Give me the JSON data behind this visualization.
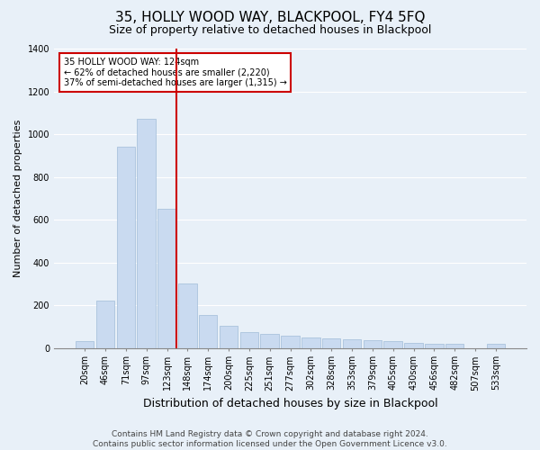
{
  "title": "35, HOLLY WOOD WAY, BLACKPOOL, FY4 5FQ",
  "subtitle": "Size of property relative to detached houses in Blackpool",
  "xlabel": "Distribution of detached houses by size in Blackpool",
  "ylabel": "Number of detached properties",
  "categories": [
    "20sqm",
    "46sqm",
    "71sqm",
    "97sqm",
    "123sqm",
    "148sqm",
    "174sqm",
    "200sqm",
    "225sqm",
    "251sqm",
    "277sqm",
    "302sqm",
    "328sqm",
    "353sqm",
    "379sqm",
    "405sqm",
    "430sqm",
    "456sqm",
    "482sqm",
    "507sqm",
    "533sqm"
  ],
  "values": [
    30,
    220,
    940,
    1070,
    650,
    300,
    155,
    105,
    75,
    65,
    55,
    50,
    45,
    40,
    35,
    30,
    25,
    20,
    20,
    0,
    20
  ],
  "bar_color": "#c9daf0",
  "bar_edge_color": "#a0bcd8",
  "vline_color": "#cc0000",
  "vline_x_idx": 4,
  "annotation_text": "35 HOLLY WOOD WAY: 124sqm\n← 62% of detached houses are smaller (2,220)\n37% of semi-detached houses are larger (1,315) →",
  "annotation_box_facecolor": "#ffffff",
  "annotation_box_edgecolor": "#cc0000",
  "ylim": [
    0,
    1400
  ],
  "yticks": [
    0,
    200,
    400,
    600,
    800,
    1000,
    1200,
    1400
  ],
  "footer_line1": "Contains HM Land Registry data © Crown copyright and database right 2024.",
  "footer_line2": "Contains public sector information licensed under the Open Government Licence v3.0.",
  "bg_color": "#e8f0f8",
  "grid_color": "#ffffff",
  "title_fontsize": 11,
  "subtitle_fontsize": 9,
  "xlabel_fontsize": 9,
  "ylabel_fontsize": 8,
  "tick_fontsize": 7,
  "annotation_fontsize": 7,
  "footer_fontsize": 6.5
}
